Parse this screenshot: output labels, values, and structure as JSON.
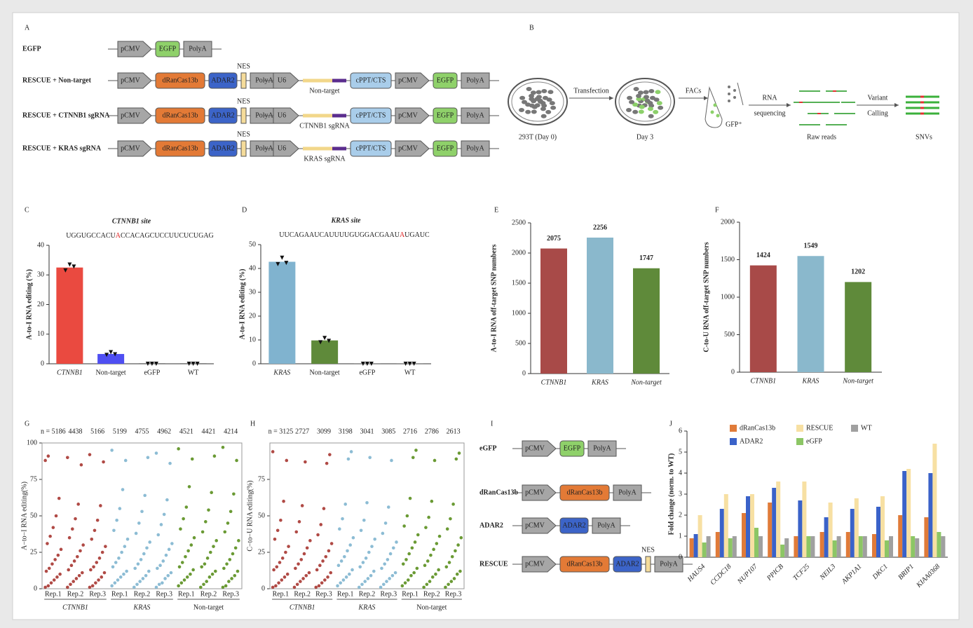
{
  "panel_a": {
    "letter": "A",
    "rows": [
      {
        "label": "EGFP",
        "cassettes": [
          [
            {
              "label": "pCMV",
              "shape": "arrow",
              "color": "#a6a6a6"
            },
            {
              "label": "EGFP",
              "shape": "round",
              "color": "#8fd16a"
            },
            {
              "label": "PolyA",
              "shape": "box",
              "color": "#a6a6a6"
            }
          ]
        ]
      },
      {
        "label": "RESCUE + Non-target",
        "cassettes": [
          [
            {
              "label": "pCMV",
              "shape": "arrow",
              "color": "#a6a6a6"
            },
            {
              "label": "dRanCas13b",
              "shape": "round",
              "color": "#e37a36"
            },
            {
              "label": "ADAR2",
              "shape": "round",
              "color": "#3c64c8"
            },
            {
              "label": "NES",
              "shape": "bar",
              "color": "#f5dc9a"
            },
            {
              "label": "PolyA",
              "shape": "box",
              "color": "#a6a6a6"
            }
          ],
          [
            {
              "label": "U6",
              "shape": "arrow",
              "color": "#a6a6a6"
            },
            {
              "label": "Non-target",
              "shape": "sgrna",
              "color": "#f2d78a"
            },
            {
              "label": "cPPT/CTS",
              "shape": "round",
              "color": "#a9cdea"
            },
            {
              "label": "pCMV",
              "shape": "arrow",
              "color": "#a6a6a6"
            },
            {
              "label": "EGFP",
              "shape": "round",
              "color": "#8fd16a"
            },
            {
              "label": "PolyA",
              "shape": "box",
              "color": "#a6a6a6"
            }
          ]
        ]
      },
      {
        "label": "RESCUE + CTNNB1 sgRNA",
        "cassettes": [
          [
            {
              "label": "pCMV",
              "shape": "arrow",
              "color": "#a6a6a6"
            },
            {
              "label": "dRanCas13b",
              "shape": "round",
              "color": "#e37a36"
            },
            {
              "label": "ADAR2",
              "shape": "round",
              "color": "#3c64c8"
            },
            {
              "label": "NES",
              "shape": "bar",
              "color": "#f5dc9a"
            },
            {
              "label": "PolyA",
              "shape": "box",
              "color": "#a6a6a6"
            }
          ],
          [
            {
              "label": "U6",
              "shape": "arrow",
              "color": "#a6a6a6"
            },
            {
              "label": "CTNNB1 sgRNA",
              "shape": "sgrna",
              "color": "#f2d78a"
            },
            {
              "label": "cPPT/CTS",
              "shape": "round",
              "color": "#a9cdea"
            },
            {
              "label": "pCMV",
              "shape": "arrow",
              "color": "#a6a6a6"
            },
            {
              "label": "EGFP",
              "shape": "round",
              "color": "#8fd16a"
            },
            {
              "label": "PolyA",
              "shape": "box",
              "color": "#a6a6a6"
            }
          ]
        ]
      },
      {
        "label": "RESCUE + KRAS sgRNA",
        "cassettes": [
          [
            {
              "label": "pCMV",
              "shape": "arrow",
              "color": "#a6a6a6"
            },
            {
              "label": "dRanCas13b",
              "shape": "round",
              "color": "#e37a36"
            },
            {
              "label": "ADAR2",
              "shape": "round",
              "color": "#3c64c8"
            },
            {
              "label": "NES",
              "shape": "bar",
              "color": "#f5dc9a"
            },
            {
              "label": "PolyA",
              "shape": "box",
              "color": "#a6a6a6"
            }
          ],
          [
            {
              "label": "U6",
              "shape": "arrow",
              "color": "#a6a6a6"
            },
            {
              "label": "KRAS sgRNA",
              "shape": "sgrna",
              "color": "#f2d78a"
            },
            {
              "label": "cPPT/CTS",
              "shape": "round",
              "color": "#a9cdea"
            },
            {
              "label": "pCMV",
              "shape": "arrow",
              "color": "#a6a6a6"
            },
            {
              "label": "EGFP",
              "shape": "round",
              "color": "#8fd16a"
            },
            {
              "label": "PolyA",
              "shape": "box",
              "color": "#a6a6a6"
            }
          ]
        ]
      }
    ]
  },
  "panel_b": {
    "letter": "B",
    "steps": [
      "293T (Day  0)",
      "Day 3",
      "Raw reads",
      "SNVs"
    ],
    "arrows": [
      [
        "Transfection"
      ],
      [
        "FACs"
      ],
      [
        "RNA",
        "sequencing"
      ],
      [
        "Variant",
        "Calling"
      ]
    ],
    "gfp_label": "GFP⁺"
  },
  "panel_i": {
    "letter": "I",
    "rows": [
      {
        "label": "eGFP",
        "cassettes": [
          [
            {
              "label": "pCMV",
              "shape": "arrow",
              "color": "#a6a6a6"
            },
            {
              "label": "EGFP",
              "shape": "round",
              "color": "#8fd16a"
            },
            {
              "label": "PolyA",
              "shape": "box",
              "color": "#a6a6a6"
            }
          ]
        ]
      },
      {
        "label": "dRanCas13b",
        "cassettes": [
          [
            {
              "label": "pCMV",
              "shape": "arrow",
              "color": "#a6a6a6"
            },
            {
              "label": "dRanCas13b",
              "shape": "round",
              "color": "#e37a36"
            },
            {
              "label": "PolyA",
              "shape": "box",
              "color": "#a6a6a6"
            }
          ]
        ]
      },
      {
        "label": "ADAR2",
        "cassettes": [
          [
            {
              "label": "pCMV",
              "shape": "arrow",
              "color": "#a6a6a6"
            },
            {
              "label": "ADAR2",
              "shape": "round",
              "color": "#3c64c8"
            },
            {
              "label": "PolyA",
              "shape": "box",
              "color": "#a6a6a6"
            }
          ]
        ]
      },
      {
        "label": "RESCUE",
        "cassettes": [
          [
            {
              "label": "pCMV",
              "shape": "arrow",
              "color": "#a6a6a6"
            },
            {
              "label": "dRanCas13b",
              "shape": "round",
              "color": "#e37a36"
            },
            {
              "label": "ADAR2",
              "shape": "round",
              "color": "#3c64c8"
            },
            {
              "label": "NES",
              "shape": "bar",
              "color": "#f5dc9a"
            },
            {
              "label": "PolyA",
              "shape": "box",
              "color": "#a6a6a6"
            }
          ]
        ]
      }
    ]
  },
  "chart_data": [
    {
      "type": "bar",
      "panel": "C",
      "title": "CTNNB1 site",
      "sequence": [
        "UGGUGCCACU",
        "A",
        "CCACAGCUCCUUCUCUGAG"
      ],
      "highlight": 1,
      "ylabel": "A-to-I RNA editing (%)",
      "categories": [
        "CTNNB1",
        "Non-target",
        "eGFP",
        "WT"
      ],
      "italic_categories": [
        true,
        false,
        false,
        false
      ],
      "values": [
        32.5,
        3.3,
        0.2,
        0.2
      ],
      "points": [
        [
          31.5,
          33.5,
          32.8
        ],
        [
          3.0,
          3.9,
          3.2
        ],
        [
          0,
          0,
          0
        ],
        [
          0,
          0,
          0
        ]
      ],
      "colors": [
        "#ea4a40",
        "#4f4ff2",
        "#777777",
        "#777777"
      ],
      "ylim": [
        0,
        40
      ],
      "yticks": [
        0,
        10,
        20,
        30,
        40
      ]
    },
    {
      "type": "bar",
      "panel": "D",
      "title": "KRAS site",
      "sequence": [
        "UUCAGAAUCAUUUUGUGGACGAAU",
        "A",
        "UGAUC"
      ],
      "highlight": 1,
      "ylabel": "A-to-I RNA editing (%)",
      "categories": [
        "KRAS",
        "Non-target",
        "eGFP",
        "WT"
      ],
      "italic_categories": [
        true,
        false,
        false,
        false
      ],
      "values": [
        42.8,
        9.8,
        0.2,
        0.2
      ],
      "points": [
        [
          41.8,
          44.5,
          42.3
        ],
        [
          9.0,
          10.8,
          9.6
        ],
        [
          0,
          0,
          0
        ],
        [
          0,
          0,
          0
        ]
      ],
      "colors": [
        "#80b3cf",
        "#5f8a3a",
        "#777777",
        "#777777"
      ],
      "ylim": [
        0,
        50
      ],
      "yticks": [
        0,
        10,
        20,
        30,
        40,
        50
      ]
    },
    {
      "type": "bar",
      "panel": "E",
      "ylabel": "A-to-I RNA off-target SNP numbers",
      "categories": [
        "CTNNB1",
        "KRAS",
        "Non-target"
      ],
      "italic_categories": [
        true,
        true,
        true
      ],
      "values": [
        2075,
        2256,
        1747
      ],
      "data_labels": true,
      "colors": [
        "#a84a48",
        "#8ab8cc",
        "#5f8a3a"
      ],
      "ylim": [
        0,
        2500
      ],
      "yticks": [
        0,
        500,
        1000,
        1500,
        2000,
        2500
      ]
    },
    {
      "type": "bar",
      "panel": "F",
      "ylabel": "C-to-U RNA off-target SNP numbers",
      "categories": [
        "CTNNB1",
        "KRAS",
        "Non-target"
      ],
      "italic_categories": [
        true,
        true,
        true
      ],
      "values": [
        1424,
        1549,
        1202
      ],
      "data_labels": true,
      "colors": [
        "#a84a48",
        "#8ab8cc",
        "#5f8a3a"
      ],
      "ylim": [
        0,
        2000
      ],
      "yticks": [
        0,
        500,
        1000,
        1500,
        2000
      ]
    },
    {
      "type": "strip",
      "panel": "G",
      "ylabel": "A−to−I RNA editing(%)",
      "categories": [
        "Rep.1",
        "Rep.2",
        "Rep.3",
        "Rep.1",
        "Rep.2",
        "Rep.3",
        "Rep.1",
        "Rep.2",
        "Rep.3"
      ],
      "groups": [
        "CTNNB1",
        "KRAS",
        "Non-target"
      ],
      "colors": [
        "#b04a45",
        "#8cbcd4",
        "#6a9a34"
      ],
      "counts": [
        5186,
        4438,
        5166,
        5199,
        4755,
        4962,
        4521,
        4421,
        4214
      ],
      "count_labels": [
        "n = 5186",
        "4438",
        "5166",
        "5199",
        "4755",
        "4962",
        "4521",
        "4421",
        "4214"
      ],
      "ylim": [
        0,
        100
      ],
      "yticks": [
        0,
        25,
        50,
        75,
        100
      ],
      "values": [
        [
          1,
          2,
          4,
          6,
          8,
          10,
          12,
          14,
          17,
          20,
          23,
          27,
          31,
          36,
          42,
          50,
          62,
          88,
          91
        ],
        [
          1,
          3,
          5,
          7,
          9,
          11,
          13,
          16,
          19,
          22,
          26,
          30,
          35,
          41,
          48,
          58,
          85,
          90
        ],
        [
          1,
          2,
          4,
          6,
          8,
          11,
          13,
          15,
          18,
          21,
          25,
          29,
          34,
          40,
          47,
          57,
          87,
          92
        ],
        [
          2,
          4,
          6,
          8,
          10,
          12,
          15,
          18,
          21,
          25,
          29,
          34,
          40,
          47,
          55,
          68,
          88,
          95
        ],
        [
          1,
          3,
          5,
          7,
          9,
          12,
          14,
          17,
          20,
          24,
          28,
          32,
          38,
          45,
          53,
          64,
          90
        ],
        [
          1,
          3,
          4,
          7,
          9,
          11,
          14,
          16,
          19,
          23,
          27,
          31,
          37,
          44,
          51,
          61,
          86,
          93
        ],
        [
          2,
          4,
          6,
          8,
          10,
          13,
          15,
          18,
          22,
          26,
          30,
          35,
          41,
          48,
          56,
          70,
          89,
          96
        ],
        [
          1,
          3,
          5,
          8,
          10,
          12,
          15,
          17,
          21,
          25,
          29,
          33,
          39,
          46,
          54,
          66,
          91
        ],
        [
          1,
          2,
          5,
          7,
          9,
          12,
          14,
          17,
          20,
          24,
          28,
          33,
          39,
          45,
          53,
          65,
          88,
          97
        ]
      ]
    },
    {
      "type": "strip",
      "panel": "H",
      "ylabel": "C−to−U RNA editing(%)",
      "categories": [
        "Rep.1",
        "Rep.2",
        "Rep.3",
        "Rep.1",
        "Rep.2",
        "Rep.3",
        "Rep.1",
        "Rep.2",
        "Rep.3"
      ],
      "groups": [
        "CTNNB1",
        "KRAS",
        "Non-target"
      ],
      "colors": [
        "#b04a45",
        "#8cbcd4",
        "#6a9a34"
      ],
      "counts": [
        3125,
        2727,
        3099,
        3198,
        3041,
        3085,
        2716,
        2786,
        2613
      ],
      "count_labels": [
        "n = 3125",
        "2727",
        "3099",
        "3198",
        "3041",
        "3085",
        "2716",
        "2786",
        "2613"
      ],
      "ylim": [
        0,
        100
      ],
      "yticks": [
        0,
        25,
        50,
        75
      ],
      "values": [
        [
          1,
          2,
          4,
          6,
          8,
          10,
          13,
          15,
          18,
          21,
          25,
          29,
          34,
          40,
          47,
          60,
          88,
          94
        ],
        [
          1,
          3,
          5,
          7,
          9,
          11,
          14,
          17,
          20,
          24,
          28,
          33,
          39,
          46,
          57,
          87
        ],
        [
          1,
          2,
          4,
          6,
          8,
          11,
          13,
          16,
          19,
          22,
          26,
          31,
          37,
          44,
          55,
          86,
          92
        ],
        [
          2,
          4,
          6,
          8,
          10,
          13,
          16,
          19,
          22,
          26,
          30,
          35,
          41,
          48,
          58,
          89,
          94
        ],
        [
          1,
          3,
          5,
          7,
          9,
          12,
          15,
          18,
          21,
          25,
          29,
          34,
          40,
          47,
          59,
          90
        ],
        [
          1,
          3,
          5,
          7,
          9,
          11,
          14,
          17,
          20,
          24,
          28,
          32,
          38,
          45,
          56,
          88
        ],
        [
          2,
          4,
          6,
          9,
          11,
          14,
          17,
          20,
          24,
          28,
          32,
          37,
          43,
          50,
          62,
          90,
          95
        ],
        [
          1,
          3,
          5,
          8,
          10,
          13,
          16,
          19,
          23,
          27,
          31,
          36,
          42,
          49,
          60,
          88
        ],
        [
          1,
          3,
          5,
          7,
          10,
          12,
          15,
          18,
          22,
          26,
          30,
          35,
          41,
          48,
          58,
          89,
          93
        ]
      ]
    },
    {
      "type": "grouped_bar",
      "panel": "J",
      "ylabel": "Fold change (norm. to WT)",
      "categories": [
        "HAUS4",
        "CCDC18",
        "NUP107",
        "PPICB",
        "TCF25",
        "NEIL3",
        "AKP1A1",
        "DKC1",
        "BRIP1",
        "KIAA0368"
      ],
      "ylim": [
        0,
        6
      ],
      "yticks": [
        0,
        1,
        2,
        3,
        4,
        5,
        6
      ],
      "series": [
        {
          "name": "dRanCas13b",
          "color": "#e07b39",
          "values": [
            0.9,
            1.2,
            2.1,
            2.6,
            1.0,
            1.2,
            1.2,
            1.1,
            2.0,
            1.9
          ]
        },
        {
          "name": "ADAR2",
          "color": "#3a62c9",
          "values": [
            1.1,
            2.3,
            2.9,
            3.3,
            2.7,
            1.9,
            2.3,
            2.4,
            4.1,
            4.0
          ]
        },
        {
          "name": "RESCUE",
          "color": "#f7e0a3",
          "values": [
            2.0,
            3.0,
            3.0,
            3.6,
            3.6,
            2.6,
            2.8,
            2.9,
            4.2,
            5.4
          ]
        },
        {
          "name": "eGFP",
          "color": "#8cc665",
          "values": [
            0.7,
            0.9,
            1.4,
            0.6,
            1.0,
            0.8,
            1.0,
            0.8,
            1.0,
            1.2
          ]
        },
        {
          "name": "WT",
          "color": "#a0a0a0",
          "values": [
            1.0,
            1.0,
            1.0,
            0.9,
            1.0,
            1.0,
            1.0,
            1.0,
            0.9,
            1.0
          ]
        }
      ]
    }
  ]
}
